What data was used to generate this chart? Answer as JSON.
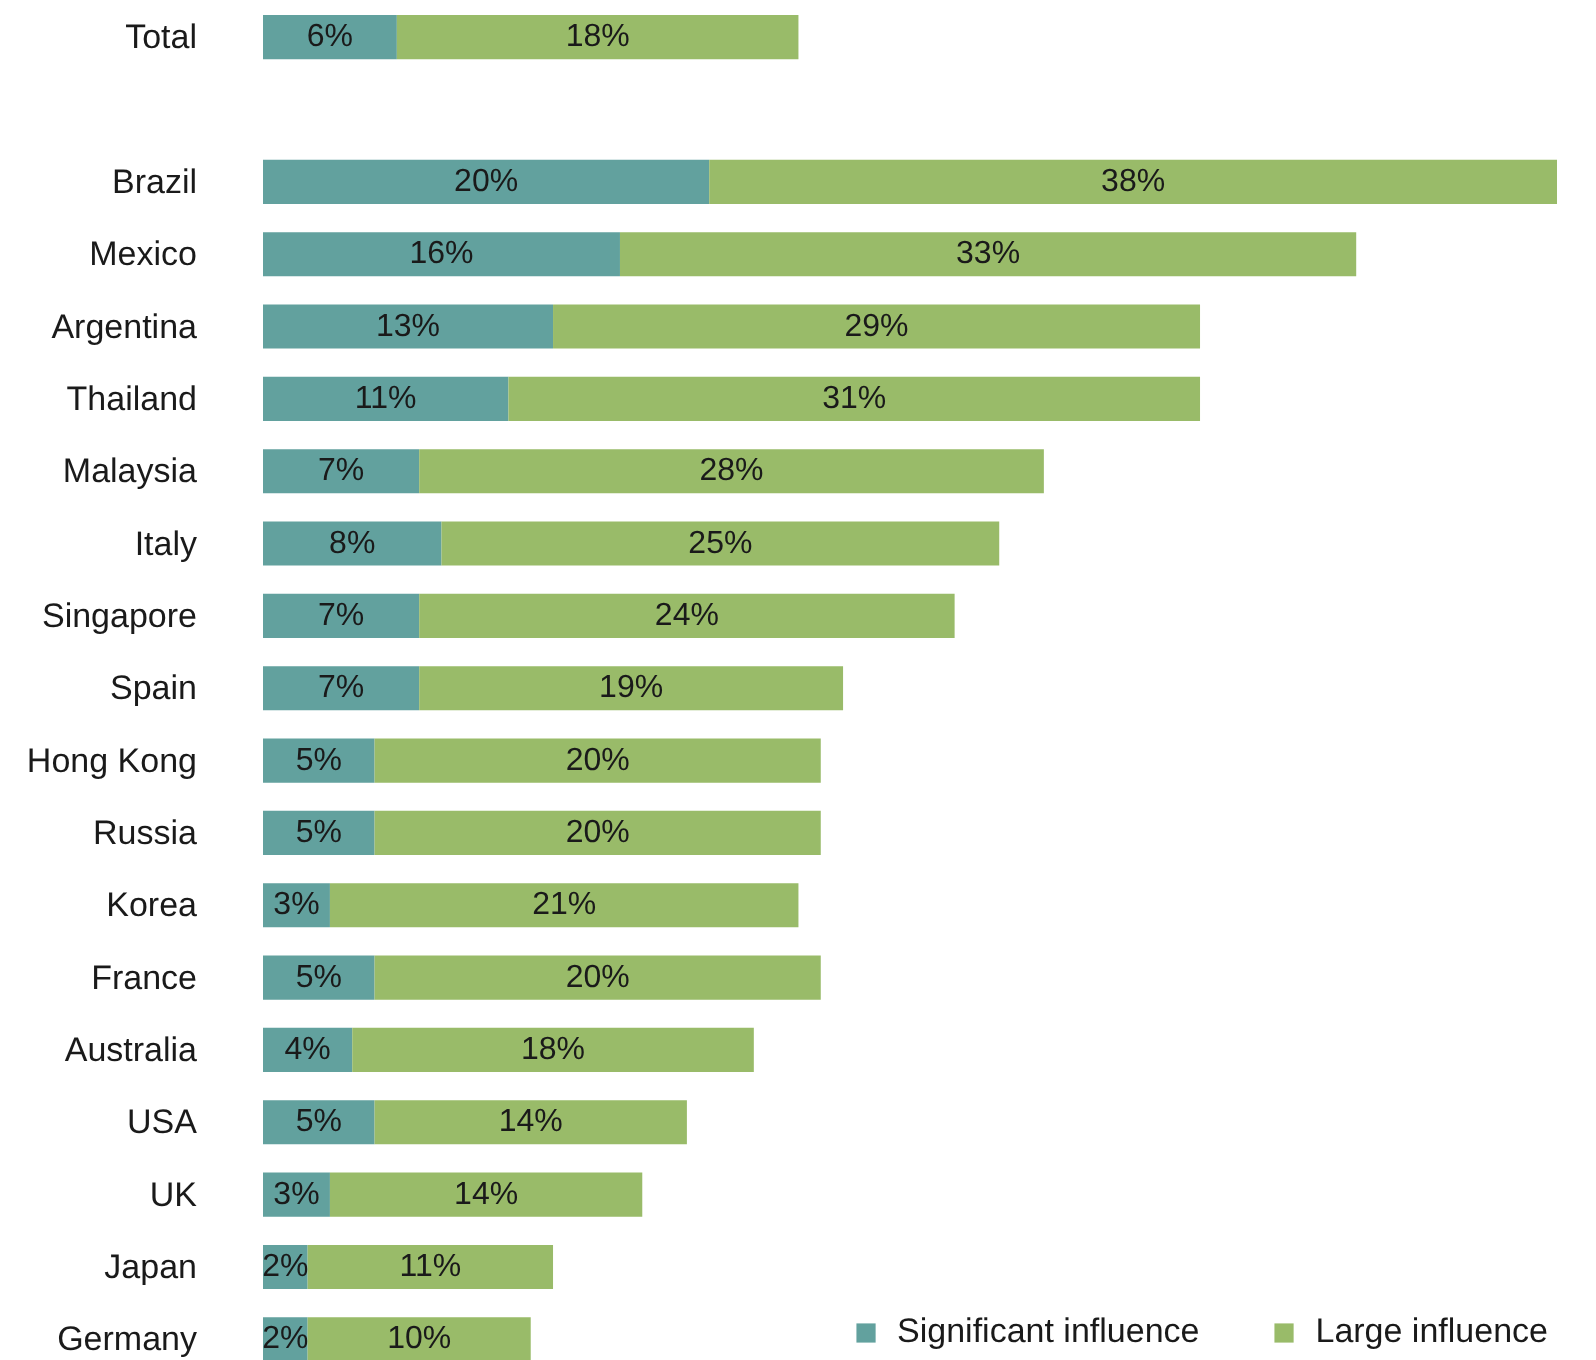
{
  "chart_data": {
    "type": "bar",
    "orientation": "horizontal",
    "stacked": true,
    "categories": [
      "Total",
      null,
      "Brazil",
      "Mexico",
      "Argentina",
      "Thailand",
      "Malaysia",
      "Italy",
      "Singapore",
      "Spain",
      "Hong Kong",
      "Russia",
      "Korea",
      "France",
      "Australia",
      "USA",
      "UK",
      "Japan",
      "Germany"
    ],
    "series": [
      {
        "name": "Significant influence",
        "color": "#62a19e",
        "values": [
          6,
          null,
          20,
          16,
          13,
          11,
          7,
          8,
          7,
          7,
          5,
          5,
          3,
          5,
          4,
          5,
          3,
          2,
          2
        ],
        "value_labels": [
          "6%",
          null,
          "20%",
          "16%",
          "13%",
          "11%",
          "7%",
          "8%",
          "7%",
          "7%",
          "5%",
          "5%",
          "3%",
          "5%",
          "4%",
          "5%",
          "3%",
          "2%",
          "2%"
        ]
      },
      {
        "name": "Large influence",
        "color": "#99bb69",
        "values": [
          18,
          null,
          38,
          33,
          29,
          31,
          28,
          25,
          24,
          19,
          20,
          20,
          21,
          20,
          18,
          14,
          14,
          11,
          10
        ],
        "value_labels": [
          "18%",
          null,
          "38%",
          "33%",
          "29%",
          "31%",
          "28%",
          "25%",
          "24%",
          "19%",
          "20%",
          "20%",
          "21%",
          "20%",
          "18%",
          "14%",
          "14%",
          "11%",
          "10%"
        ]
      }
    ],
    "legend": "bottom right",
    "tick_labels": "y"
  }
}
